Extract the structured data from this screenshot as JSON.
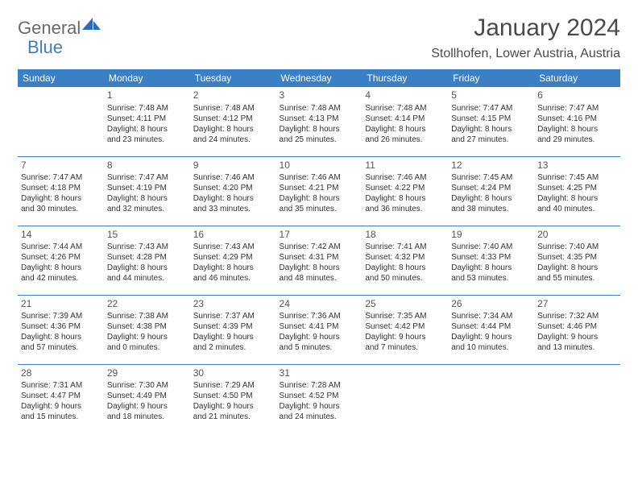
{
  "branding": {
    "text1": "General",
    "text2": "Blue"
  },
  "title": "January 2024",
  "location": "Stollhofen, Lower Austria, Austria",
  "colors": {
    "header_bg": "#3b7fc4",
    "header_fg": "#ffffff",
    "text": "#333333",
    "divider": "#3b7fc4",
    "background": "#ffffff"
  },
  "day_headers": [
    "Sunday",
    "Monday",
    "Tuesday",
    "Wednesday",
    "Thursday",
    "Friday",
    "Saturday"
  ],
  "weeks": [
    [
      null,
      {
        "n": "1",
        "sr": "Sunrise: 7:48 AM",
        "ss": "Sunset: 4:11 PM",
        "d1": "Daylight: 8 hours",
        "d2": "and 23 minutes."
      },
      {
        "n": "2",
        "sr": "Sunrise: 7:48 AM",
        "ss": "Sunset: 4:12 PM",
        "d1": "Daylight: 8 hours",
        "d2": "and 24 minutes."
      },
      {
        "n": "3",
        "sr": "Sunrise: 7:48 AM",
        "ss": "Sunset: 4:13 PM",
        "d1": "Daylight: 8 hours",
        "d2": "and 25 minutes."
      },
      {
        "n": "4",
        "sr": "Sunrise: 7:48 AM",
        "ss": "Sunset: 4:14 PM",
        "d1": "Daylight: 8 hours",
        "d2": "and 26 minutes."
      },
      {
        "n": "5",
        "sr": "Sunrise: 7:47 AM",
        "ss": "Sunset: 4:15 PM",
        "d1": "Daylight: 8 hours",
        "d2": "and 27 minutes."
      },
      {
        "n": "6",
        "sr": "Sunrise: 7:47 AM",
        "ss": "Sunset: 4:16 PM",
        "d1": "Daylight: 8 hours",
        "d2": "and 29 minutes."
      }
    ],
    [
      {
        "n": "7",
        "sr": "Sunrise: 7:47 AM",
        "ss": "Sunset: 4:18 PM",
        "d1": "Daylight: 8 hours",
        "d2": "and 30 minutes."
      },
      {
        "n": "8",
        "sr": "Sunrise: 7:47 AM",
        "ss": "Sunset: 4:19 PM",
        "d1": "Daylight: 8 hours",
        "d2": "and 32 minutes."
      },
      {
        "n": "9",
        "sr": "Sunrise: 7:46 AM",
        "ss": "Sunset: 4:20 PM",
        "d1": "Daylight: 8 hours",
        "d2": "and 33 minutes."
      },
      {
        "n": "10",
        "sr": "Sunrise: 7:46 AM",
        "ss": "Sunset: 4:21 PM",
        "d1": "Daylight: 8 hours",
        "d2": "and 35 minutes."
      },
      {
        "n": "11",
        "sr": "Sunrise: 7:46 AM",
        "ss": "Sunset: 4:22 PM",
        "d1": "Daylight: 8 hours",
        "d2": "and 36 minutes."
      },
      {
        "n": "12",
        "sr": "Sunrise: 7:45 AM",
        "ss": "Sunset: 4:24 PM",
        "d1": "Daylight: 8 hours",
        "d2": "and 38 minutes."
      },
      {
        "n": "13",
        "sr": "Sunrise: 7:45 AM",
        "ss": "Sunset: 4:25 PM",
        "d1": "Daylight: 8 hours",
        "d2": "and 40 minutes."
      }
    ],
    [
      {
        "n": "14",
        "sr": "Sunrise: 7:44 AM",
        "ss": "Sunset: 4:26 PM",
        "d1": "Daylight: 8 hours",
        "d2": "and 42 minutes."
      },
      {
        "n": "15",
        "sr": "Sunrise: 7:43 AM",
        "ss": "Sunset: 4:28 PM",
        "d1": "Daylight: 8 hours",
        "d2": "and 44 minutes."
      },
      {
        "n": "16",
        "sr": "Sunrise: 7:43 AM",
        "ss": "Sunset: 4:29 PM",
        "d1": "Daylight: 8 hours",
        "d2": "and 46 minutes."
      },
      {
        "n": "17",
        "sr": "Sunrise: 7:42 AM",
        "ss": "Sunset: 4:31 PM",
        "d1": "Daylight: 8 hours",
        "d2": "and 48 minutes."
      },
      {
        "n": "18",
        "sr": "Sunrise: 7:41 AM",
        "ss": "Sunset: 4:32 PM",
        "d1": "Daylight: 8 hours",
        "d2": "and 50 minutes."
      },
      {
        "n": "19",
        "sr": "Sunrise: 7:40 AM",
        "ss": "Sunset: 4:33 PM",
        "d1": "Daylight: 8 hours",
        "d2": "and 53 minutes."
      },
      {
        "n": "20",
        "sr": "Sunrise: 7:40 AM",
        "ss": "Sunset: 4:35 PM",
        "d1": "Daylight: 8 hours",
        "d2": "and 55 minutes."
      }
    ],
    [
      {
        "n": "21",
        "sr": "Sunrise: 7:39 AM",
        "ss": "Sunset: 4:36 PM",
        "d1": "Daylight: 8 hours",
        "d2": "and 57 minutes."
      },
      {
        "n": "22",
        "sr": "Sunrise: 7:38 AM",
        "ss": "Sunset: 4:38 PM",
        "d1": "Daylight: 9 hours",
        "d2": "and 0 minutes."
      },
      {
        "n": "23",
        "sr": "Sunrise: 7:37 AM",
        "ss": "Sunset: 4:39 PM",
        "d1": "Daylight: 9 hours",
        "d2": "and 2 minutes."
      },
      {
        "n": "24",
        "sr": "Sunrise: 7:36 AM",
        "ss": "Sunset: 4:41 PM",
        "d1": "Daylight: 9 hours",
        "d2": "and 5 minutes."
      },
      {
        "n": "25",
        "sr": "Sunrise: 7:35 AM",
        "ss": "Sunset: 4:42 PM",
        "d1": "Daylight: 9 hours",
        "d2": "and 7 minutes."
      },
      {
        "n": "26",
        "sr": "Sunrise: 7:34 AM",
        "ss": "Sunset: 4:44 PM",
        "d1": "Daylight: 9 hours",
        "d2": "and 10 minutes."
      },
      {
        "n": "27",
        "sr": "Sunrise: 7:32 AM",
        "ss": "Sunset: 4:46 PM",
        "d1": "Daylight: 9 hours",
        "d2": "and 13 minutes."
      }
    ],
    [
      {
        "n": "28",
        "sr": "Sunrise: 7:31 AM",
        "ss": "Sunset: 4:47 PM",
        "d1": "Daylight: 9 hours",
        "d2": "and 15 minutes."
      },
      {
        "n": "29",
        "sr": "Sunrise: 7:30 AM",
        "ss": "Sunset: 4:49 PM",
        "d1": "Daylight: 9 hours",
        "d2": "and 18 minutes."
      },
      {
        "n": "30",
        "sr": "Sunrise: 7:29 AM",
        "ss": "Sunset: 4:50 PM",
        "d1": "Daylight: 9 hours",
        "d2": "and 21 minutes."
      },
      {
        "n": "31",
        "sr": "Sunrise: 7:28 AM",
        "ss": "Sunset: 4:52 PM",
        "d1": "Daylight: 9 hours",
        "d2": "and 24 minutes."
      },
      null,
      null,
      null
    ]
  ]
}
